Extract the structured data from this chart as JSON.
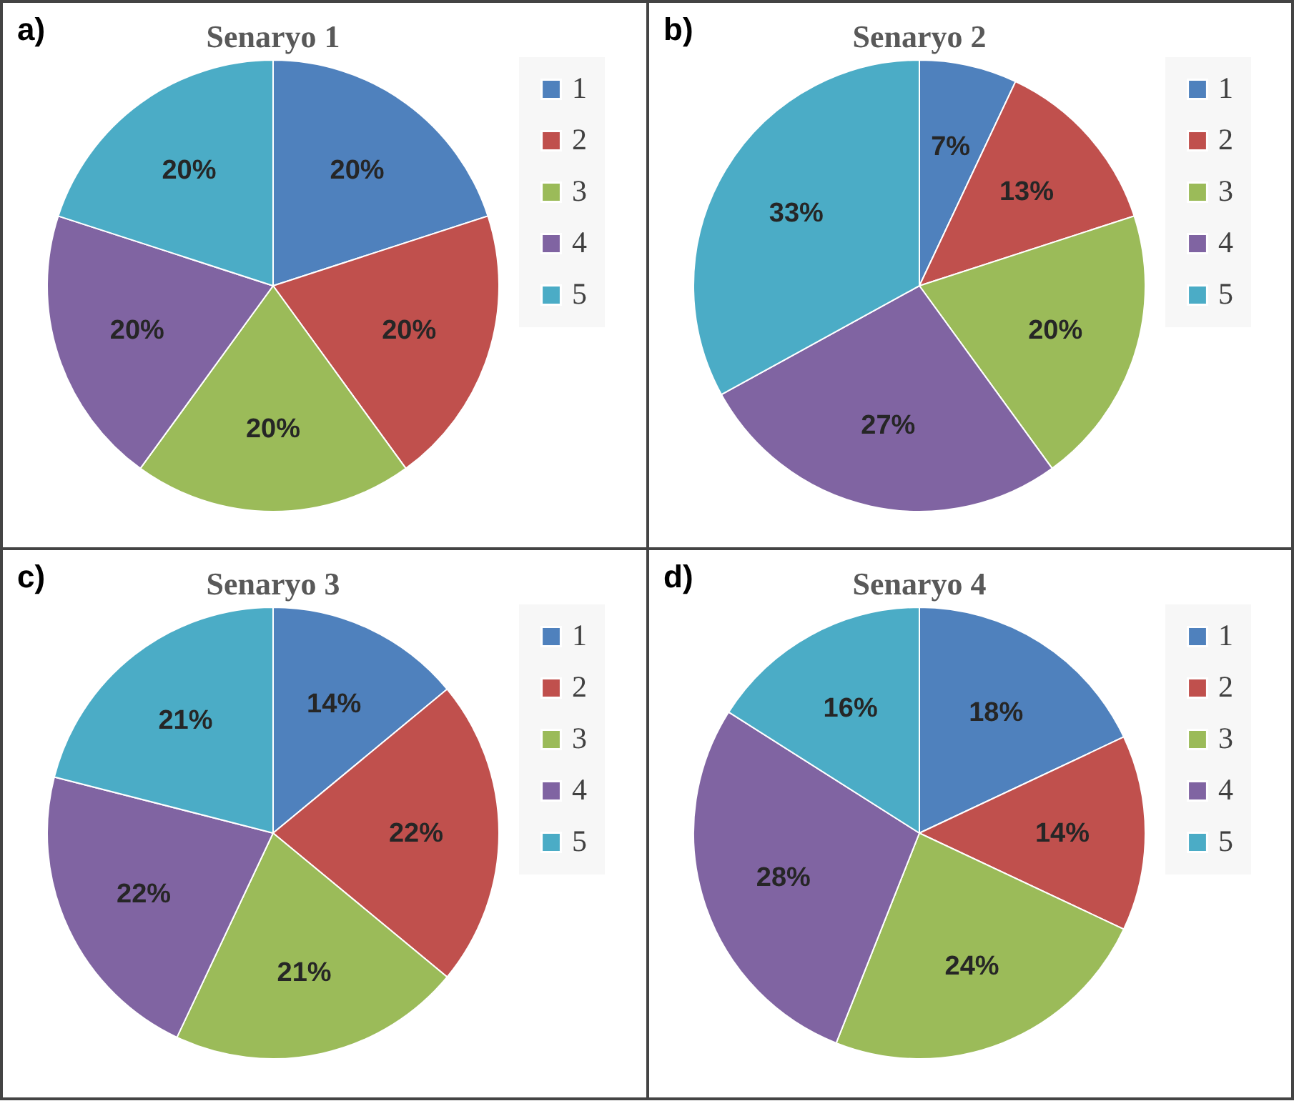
{
  "chart_data": [
    {
      "type": "pie",
      "title": "Senaryo 1",
      "annotations": [
        "a)"
      ],
      "categories": [
        "1",
        "2",
        "3",
        "4",
        "5"
      ],
      "values": [
        20,
        20,
        20,
        20,
        20
      ],
      "value_labels": [
        "20%",
        "20%",
        "20%",
        "20%",
        "20%"
      ],
      "colors": [
        "#4f81bd",
        "#c0504d",
        "#9bbb59",
        "#8064a2",
        "#4bacc6"
      ],
      "legend": "right"
    },
    {
      "type": "pie",
      "title": "Senaryo 2",
      "annotations": [
        "b)"
      ],
      "categories": [
        "1",
        "2",
        "3",
        "4",
        "5"
      ],
      "values": [
        7,
        13,
        20,
        27,
        33
      ],
      "value_labels": [
        "7%",
        "13%",
        "20%",
        "27%",
        "33%"
      ],
      "colors": [
        "#4f81bd",
        "#c0504d",
        "#9bbb59",
        "#8064a2",
        "#4bacc6"
      ],
      "legend": "right"
    },
    {
      "type": "pie",
      "title": "Senaryo 3",
      "annotations": [
        "c)"
      ],
      "categories": [
        "1",
        "2",
        "3",
        "4",
        "5"
      ],
      "values": [
        14,
        22,
        21,
        22,
        21
      ],
      "value_labels": [
        "14%",
        "22%",
        "21%",
        "22%",
        "21%"
      ],
      "colors": [
        "#4f81bd",
        "#c0504d",
        "#9bbb59",
        "#8064a2",
        "#4bacc6"
      ],
      "legend": "right"
    },
    {
      "type": "pie",
      "title": "Senaryo 4",
      "annotations": [
        "d)"
      ],
      "categories": [
        "1",
        "2",
        "3",
        "4",
        "5"
      ],
      "values": [
        18,
        14,
        24,
        28,
        16
      ],
      "value_labels": [
        "18%",
        "14%",
        "24%",
        "28%",
        "16%"
      ],
      "colors": [
        "#4f81bd",
        "#c0504d",
        "#9bbb59",
        "#8064a2",
        "#4bacc6"
      ],
      "legend": "right"
    }
  ]
}
